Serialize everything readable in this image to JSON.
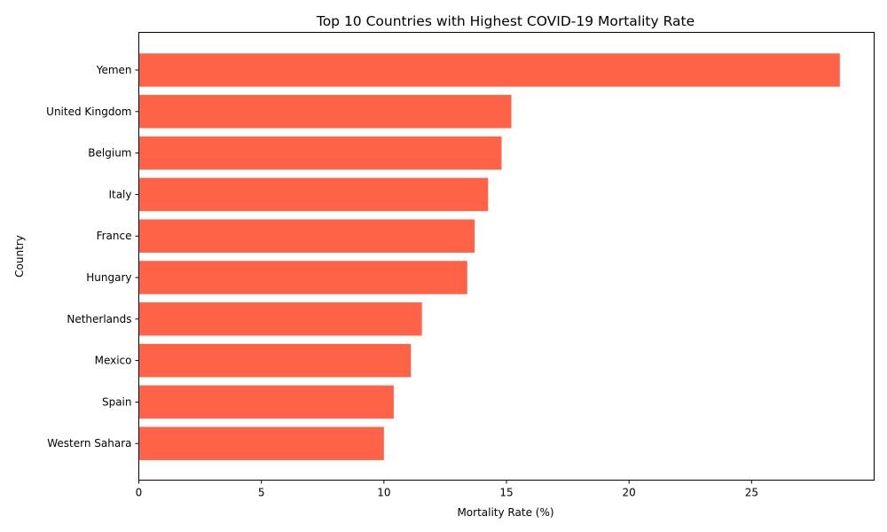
{
  "chart_data": {
    "type": "bar",
    "orientation": "horizontal",
    "title": "Top 10 Countries with Highest COVID-19 Mortality Rate",
    "xlabel": "Mortality Rate (%)",
    "ylabel": "Country",
    "categories": [
      "Yemen",
      "United Kingdom",
      "Belgium",
      "Italy",
      "France",
      "Hungary",
      "Netherlands",
      "Mexico",
      "Spain",
      "Western Sahara"
    ],
    "values": [
      28.6,
      15.2,
      14.8,
      14.25,
      13.7,
      13.4,
      11.55,
      11.1,
      10.4,
      10.0
    ],
    "xlim": [
      0,
      30.0
    ],
    "xticks": [
      0,
      5,
      10,
      15,
      20,
      25
    ],
    "bar_color": "#ff6347",
    "grid": false,
    "legend": null
  }
}
